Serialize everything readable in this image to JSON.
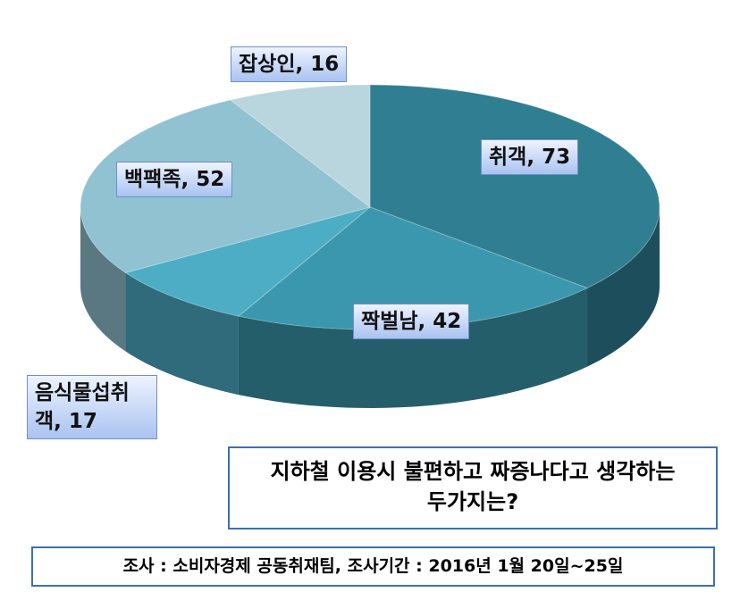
{
  "chart_data": {
    "type": "pie3d",
    "value_labels": [
      "취객, 73",
      "짝벌남, 42",
      "음식물섭취객, 17",
      "백팩족, 52",
      "잡상인, 16"
    ],
    "values": [
      73,
      42,
      17,
      52,
      16
    ],
    "colors": [
      "#2f7e92",
      "#3b97ad",
      "#4cadc4",
      "#90c2d1",
      "#b9d6df"
    ],
    "title": "지하철 이용시 불편하고 짜증나다고 생각하는 두가지는?",
    "source": "조사 : 소비자경제 공동취재팀, 조사기간 : 2016년 1월 20일~25일"
  }
}
